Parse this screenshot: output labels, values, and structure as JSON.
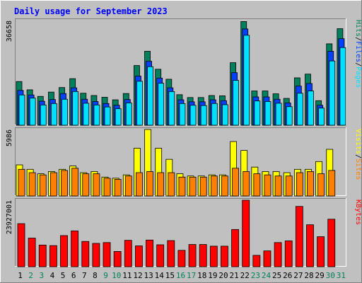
{
  "chart_data": {
    "type": "bar",
    "title": "Daily usage for September 2023",
    "x": [
      "1",
      "2",
      "3",
      "4",
      "5",
      "6",
      "7",
      "8",
      "9",
      "10",
      "11",
      "12",
      "13",
      "14",
      "15",
      "16",
      "17",
      "18",
      "19",
      "20",
      "21",
      "22",
      "23",
      "24",
      "25",
      "26",
      "27",
      "28",
      "29",
      "30",
      "31"
    ],
    "weekend_days": [
      2,
      3,
      9,
      10,
      16,
      17,
      23,
      24,
      30,
      31
    ],
    "colors": {
      "title": "#0000ff",
      "hits": "#00805c",
      "files": "#0040ff",
      "pages": "#00e0ff",
      "visits": "#ffff00",
      "sites": "#ff8000",
      "kbytes": "#ff0000",
      "weekday_label": "#000000",
      "weekend_label": "#00805c"
    },
    "panels": [
      {
        "id": "hits",
        "max_label": "36658",
        "ymax": 36658,
        "legend": [
          {
            "text": "Hits",
            "color": "#00805c"
          },
          {
            "text": "/",
            "color": "#000000"
          },
          {
            "text": "Files",
            "color": "#0040ff"
          },
          {
            "text": "/",
            "color": "#000000"
          },
          {
            "text": "Pages",
            "color": "#00e0ff"
          }
        ],
        "series": [
          {
            "name": "Hits",
            "values": [
              15300,
              12400,
              10100,
              11600,
              13200,
              16300,
              11200,
              10400,
              9800,
              8900,
              11100,
              20900,
              25900,
              19600,
              16100,
              10700,
              9700,
              9700,
              10400,
              10300,
              21900,
              36300,
              12000,
              12000,
              11000,
              9400,
              16600,
              17900,
              8600,
              28500,
              33800
            ]
          },
          {
            "name": "Files",
            "values": [
              12200,
              10600,
              8400,
              9000,
              11100,
              13100,
              9100,
              8300,
              7600,
              7000,
              9000,
              17200,
              22400,
              16500,
              13100,
              8900,
              8200,
              8200,
              8900,
              8600,
              18400,
              33700,
              9900,
              9900,
              9100,
              7800,
              13700,
              14600,
              7000,
              25900,
              30300
            ]
          },
          {
            "name": "Pages",
            "values": [
              10600,
              9500,
              7100,
              7600,
              9100,
              11800,
              7700,
              7100,
              6400,
              5800,
              7800,
              15400,
              20500,
              14700,
              11800,
              7600,
              7000,
              6900,
              7600,
              7200,
              15700,
              31500,
              8500,
              8300,
              7700,
              6500,
              11200,
              12000,
              6000,
              22500,
              27200
            ]
          }
        ]
      },
      {
        "id": "visits",
        "max_label": "5986",
        "ymax": 5986,
        "legend": [
          {
            "text": "Visits",
            "color": "#ffff00"
          },
          {
            "text": "/",
            "color": "#000000"
          },
          {
            "text": "Sites",
            "color": "#ff8000"
          }
        ],
        "series": [
          {
            "name": "Visits",
            "values": [
              2800,
              2400,
              2000,
              2200,
              2400,
              2700,
              2100,
              2200,
              1700,
              1600,
              1900,
              4300,
              5986,
              4300,
              3300,
              2000,
              1800,
              1800,
              1900,
              1900,
              4900,
              4100,
              2600,
              2200,
              2200,
              2100,
              2400,
              2400,
              3100,
              4200,
              0
            ]
          },
          {
            "name": "Sites",
            "values": [
              2400,
              2100,
              1900,
              2100,
              2300,
              2500,
              2000,
              2000,
              1600,
              1500,
              1800,
              2100,
              2200,
              2100,
              2100,
              1700,
              1700,
              1700,
              1800,
              1800,
              2500,
              2200,
              2000,
              1900,
              1800,
              1800,
              2100,
              2200,
              2000,
              2300,
              0
            ]
          }
        ]
      },
      {
        "id": "kbytes",
        "max_label": "23927001",
        "ymax": 23927001,
        "legend": [
          {
            "text": "KBytes",
            "color": "#ff0000"
          }
        ],
        "series": [
          {
            "name": "KBytes",
            "values": [
              15500000,
              10300000,
              7800000,
              7600000,
              11200000,
              12900000,
              9100000,
              8400000,
              8700000,
              5500000,
              9500000,
              7500000,
              9600000,
              7900000,
              9400000,
              5900000,
              8000000,
              8000000,
              7400000,
              7400000,
              13400000,
              23927001,
              4100000,
              5700000,
              8700000,
              9300000,
              21700000,
              15100000,
              10800000,
              17100000,
              0
            ]
          }
        ]
      }
    ]
  }
}
